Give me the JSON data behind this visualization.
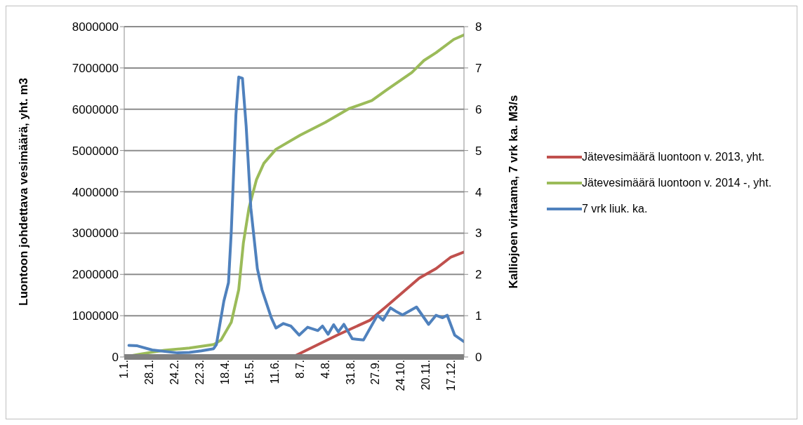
{
  "chart_data": {
    "type": "line",
    "ylabel": "Luontoon johdettava vesimäärä, yht. m3",
    "y2label": "Kalliojoen virtaama, 7 vrk ka. M3/s",
    "xlim": [
      "--01-01",
      "--12-31"
    ],
    "xticks": [
      {
        "value": "--01-01",
        "label": "1.1."
      },
      {
        "value": "--01-28",
        "label": "28.1."
      },
      {
        "value": "--02-24",
        "label": "24.2."
      },
      {
        "value": "--03-22",
        "label": "22.3."
      },
      {
        "value": "--04-18",
        "label": "18.4."
      },
      {
        "value": "--05-15",
        "label": "15.5."
      },
      {
        "value": "--06-11",
        "label": "11.6."
      },
      {
        "value": "--07-08",
        "label": "8.7."
      },
      {
        "value": "--08-04",
        "label": "4.8."
      },
      {
        "value": "--08-31",
        "label": "31.8."
      },
      {
        "value": "--09-27",
        "label": "27.9."
      },
      {
        "value": "--10-24",
        "label": "24.10."
      },
      {
        "value": "--11-20",
        "label": "20.11."
      },
      {
        "value": "--12-17",
        "label": "17.12."
      }
    ],
    "ylim": [
      0,
      8000000
    ],
    "yticks": [
      0,
      1000000,
      2000000,
      3000000,
      4000000,
      5000000,
      6000000,
      7000000,
      8000000
    ],
    "y2lim": [
      0,
      8
    ],
    "y2ticks": [
      0,
      1,
      2,
      3,
      4,
      5,
      6,
      7,
      8
    ],
    "grid": "y",
    "legend": "right",
    "marker": "none",
    "line_style": "solid",
    "series": [
      {
        "name": "Jätevesimäärä luontoon v. 2013, yht.",
        "color": "#c0504d",
        "x": [
          "--06-30",
          "--08-17",
          "--09-21",
          "--10-09",
          "--11-13",
          "--12-01",
          "--12-17",
          "--12-31"
        ],
        "values": [
          0,
          530000,
          890000,
          1230000,
          1910000,
          2140000,
          2420000,
          2540000
        ]
      },
      {
        "name": "Jätevesimäärä luontoon v. 2014 -, yht.",
        "color": "#9bbb59",
        "x": [
          "--01-01",
          "--01-18",
          "--02-13",
          "--03-11",
          "--04-06",
          "--04-14",
          "--04-25",
          "--05-03",
          "--05-08",
          "--05-14",
          "--05-22",
          "--05-30",
          "--06-12",
          "--07-08",
          "--08-04",
          "--08-30",
          "--09-23",
          "--10-09",
          "--11-05",
          "--11-18",
          "--12-01",
          "--12-20",
          "--12-31"
        ],
        "values": [
          0,
          70000,
          160000,
          215000,
          300000,
          410000,
          840000,
          1630000,
          2760000,
          3610000,
          4290000,
          4690000,
          5030000,
          5370000,
          5680000,
          6020000,
          6210000,
          6470000,
          6890000,
          7180000,
          7370000,
          7690000,
          7800000
        ]
      },
      {
        "name": "7 vrk liuk. ka.",
        "color": "#4f81bd",
        "axis": "y2",
        "x": [
          "--01-06",
          "--01-15",
          "--01-31",
          "--02-27",
          "--03-11",
          "--03-24",
          "--04-06",
          "--04-09",
          "--04-17",
          "--04-22",
          "--04-25",
          "--04-30",
          "--05-03",
          "--05-07",
          "--05-11",
          "--05-16",
          "--05-23",
          "--05-28",
          "--06-07",
          "--06-12",
          "--06-20",
          "--06-28",
          "--07-07",
          "--07-16",
          "--07-27",
          "--08-01",
          "--08-07",
          "--08-13",
          "--08-18",
          "--08-24",
          "--09-02",
          "--09-14",
          "--09-29",
          "--10-05",
          "--10-13",
          "--10-20",
          "--10-26",
          "--11-03",
          "--11-10",
          "--11-23",
          "--12-01",
          "--12-08",
          "--12-13",
          "--12-21",
          "--12-31"
        ],
        "values": [
          0.28,
          0.27,
          0.17,
          0.1,
          0.11,
          0.15,
          0.2,
          0.3,
          1.35,
          1.8,
          3.04,
          5.87,
          6.78,
          6.75,
          5.59,
          3.61,
          2.14,
          1.63,
          0.95,
          0.7,
          0.81,
          0.75,
          0.53,
          0.72,
          0.64,
          0.75,
          0.55,
          0.78,
          0.61,
          0.79,
          0.44,
          0.41,
          1.01,
          0.89,
          1.19,
          1.09,
          1.02,
          1.12,
          1.21,
          0.79,
          1.01,
          0.95,
          1.01,
          0.53,
          0.37
        ]
      }
    ]
  }
}
